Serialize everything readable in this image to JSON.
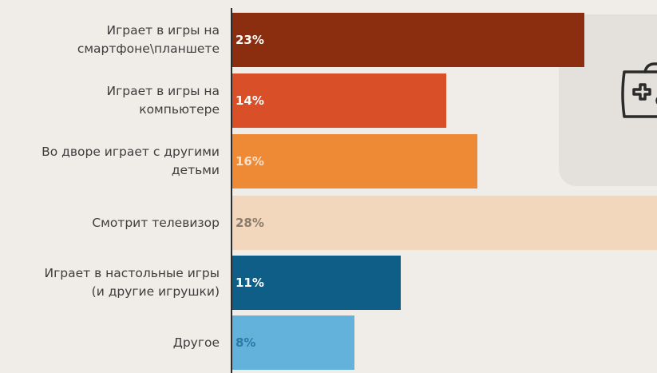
{
  "chart_data": {
    "type": "bar",
    "orientation": "horizontal",
    "categories": [
      [
        "Играет в игры на",
        "смартфоне\\планшете"
      ],
      [
        "Играет в игры на",
        "компьютере"
      ],
      [
        "Во дворе играет с другими",
        "детьми"
      ],
      [
        "Смотрит телевизор"
      ],
      [
        "Играет в настольные игры",
        "(и другие игрушки)"
      ],
      [
        "Другое"
      ]
    ],
    "values": [
      23,
      14,
      16,
      28,
      11,
      8
    ],
    "value_labels": [
      "23%",
      "14%",
      "16%",
      "28%",
      "11%",
      "8%"
    ],
    "colors": [
      "#8b2e10",
      "#d94f27",
      "#ee8a35",
      "#f3d7bc",
      "#0e5e88",
      "#62b2dc"
    ],
    "label_colors": [
      "#ffffff",
      "#ffffff",
      "#fbe0c8",
      "#8a7b6c",
      "#ffffff",
      "#2f78a8"
    ],
    "title": "",
    "xlabel": "",
    "ylabel": "",
    "xlim": [
      0,
      30
    ],
    "grid": false,
    "legend": "none"
  }
}
